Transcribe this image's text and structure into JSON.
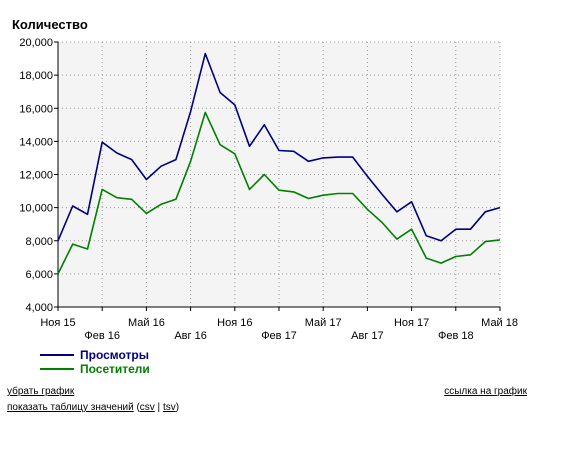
{
  "chart_data": {
    "type": "line",
    "ylabel": "Количество",
    "ylim": [
      4000,
      20000
    ],
    "yticks": [
      4000,
      6000,
      8000,
      10000,
      12000,
      14000,
      16000,
      18000,
      20000
    ],
    "ytick_labels": [
      "4,000",
      "6,000",
      "8,000",
      "10,000",
      "12,000",
      "14,000",
      "16,000",
      "18,000",
      "20,000"
    ],
    "x_months": [
      "2015-11",
      "2015-12",
      "2016-01",
      "2016-02",
      "2016-03",
      "2016-04",
      "2016-05",
      "2016-06",
      "2016-07",
      "2016-08",
      "2016-09",
      "2016-10",
      "2016-11",
      "2016-12",
      "2017-01",
      "2017-02",
      "2017-03",
      "2017-04",
      "2017-05",
      "2017-06",
      "2017-07",
      "2017-08",
      "2017-09",
      "2017-10",
      "2017-11",
      "2017-12",
      "2018-01",
      "2018-02",
      "2018-03",
      "2018-04",
      "2018-05"
    ],
    "xtick_labels": [
      {
        "month": "2015-11",
        "label": "Ноя 15",
        "row": 1
      },
      {
        "month": "2016-02",
        "label": "Фев 16",
        "row": 2
      },
      {
        "month": "2016-05",
        "label": "Май 16",
        "row": 1
      },
      {
        "month": "2016-08",
        "label": "Авг 16",
        "row": 2
      },
      {
        "month": "2016-11",
        "label": "Ноя 16",
        "row": 1
      },
      {
        "month": "2017-02",
        "label": "Фев 17",
        "row": 2
      },
      {
        "month": "2017-05",
        "label": "Май 17",
        "row": 1
      },
      {
        "month": "2017-08",
        "label": "Авг 17",
        "row": 2
      },
      {
        "month": "2017-11",
        "label": "Ноя 17",
        "row": 1
      },
      {
        "month": "2018-02",
        "label": "Фев 18",
        "row": 2
      },
      {
        "month": "2018-05",
        "label": "Май 18",
        "row": 1
      }
    ],
    "grid": true,
    "series": [
      {
        "name": "Просмотры",
        "color": "#000080",
        "values": [
          8000,
          10100,
          9600,
          13950,
          13300,
          12900,
          11700,
          12500,
          12900,
          15800,
          19300,
          16950,
          16200,
          13700,
          15000,
          13450,
          13400,
          12800,
          13000,
          13050,
          13050,
          11900,
          10800,
          9750,
          10350,
          8300,
          8000,
          8700,
          8700,
          9750,
          10000
        ]
      },
      {
        "name": "Посетители",
        "color": "#008000",
        "values": [
          6000,
          7800,
          7500,
          11100,
          10600,
          10500,
          9650,
          10200,
          10500,
          12800,
          15750,
          13800,
          13250,
          11100,
          12000,
          11050,
          10950,
          10550,
          10750,
          10850,
          10850,
          9900,
          9100,
          8100,
          8700,
          6950,
          6650,
          7050,
          7150,
          7950,
          8050
        ]
      }
    ]
  },
  "links": {
    "remove_chart": "убрать график",
    "chart_link": "ссылка на график",
    "show_table": "показать таблицу значений",
    "open_paren": " (",
    "csv": "csv",
    "sep": " | ",
    "tsv": "tsv",
    "close_paren": ")"
  }
}
